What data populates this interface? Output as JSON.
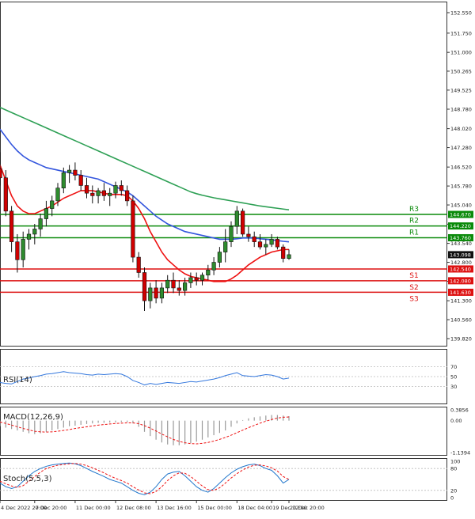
{
  "chart_data": {
    "type": "candlestick",
    "main": {
      "price_ticks": [
        "152.550",
        "151.750",
        "151.000",
        "150.265",
        "149.525",
        "148.780",
        "148.020",
        "147.280",
        "146.520",
        "145.780",
        "145.040",
        "144.290",
        "143.540",
        "142.800",
        "142.060",
        "141.300",
        "140.560",
        "139.820"
      ],
      "yrange": [
        139.82,
        152.55
      ],
      "current_price": "143.098",
      "levels": [
        {
          "name": "R3",
          "value": "144.670",
          "type": "resistance"
        },
        {
          "name": "R2",
          "value": "144.220",
          "type": "resistance"
        },
        {
          "name": "R1",
          "value": "143.760",
          "type": "resistance"
        },
        {
          "name": "S1",
          "value": "142.540",
          "type": "support"
        },
        {
          "name": "S2",
          "value": "142.080",
          "type": "support"
        },
        {
          "name": "S3",
          "value": "141.630",
          "type": "support"
        }
      ],
      "candles": [
        {
          "o": 146.45,
          "h": 147.1,
          "l": 145.8,
          "c": 146.1
        },
        {
          "o": 146.1,
          "h": 146.4,
          "l": 144.6,
          "c": 144.8
        },
        {
          "o": 144.8,
          "h": 145.0,
          "l": 143.2,
          "c": 143.6
        },
        {
          "o": 143.6,
          "h": 143.9,
          "l": 142.4,
          "c": 142.9
        },
        {
          "o": 142.9,
          "h": 144.0,
          "l": 142.6,
          "c": 143.7
        },
        {
          "o": 143.7,
          "h": 144.1,
          "l": 143.3,
          "c": 143.9
        },
        {
          "o": 143.9,
          "h": 144.3,
          "l": 143.5,
          "c": 144.1
        },
        {
          "o": 144.1,
          "h": 144.7,
          "l": 143.8,
          "c": 144.5
        },
        {
          "o": 144.5,
          "h": 145.2,
          "l": 144.2,
          "c": 144.9
        },
        {
          "o": 144.9,
          "h": 145.4,
          "l": 144.6,
          "c": 145.2
        },
        {
          "o": 145.2,
          "h": 145.9,
          "l": 145.0,
          "c": 145.7
        },
        {
          "o": 145.7,
          "h": 146.5,
          "l": 145.5,
          "c": 146.3
        },
        {
          "o": 146.3,
          "h": 146.6,
          "l": 145.9,
          "c": 146.4
        },
        {
          "o": 146.4,
          "h": 146.7,
          "l": 146.0,
          "c": 146.2
        },
        {
          "o": 146.2,
          "h": 146.4,
          "l": 145.6,
          "c": 145.8
        },
        {
          "o": 145.8,
          "h": 146.1,
          "l": 145.3,
          "c": 145.5
        },
        {
          "o": 145.5,
          "h": 145.8,
          "l": 145.1,
          "c": 145.4
        },
        {
          "o": 145.4,
          "h": 145.7,
          "l": 145.1,
          "c": 145.6
        },
        {
          "o": 145.6,
          "h": 145.9,
          "l": 145.2,
          "c": 145.4
        },
        {
          "o": 145.4,
          "h": 145.7,
          "l": 145.0,
          "c": 145.5
        },
        {
          "o": 145.5,
          "h": 145.95,
          "l": 145.3,
          "c": 145.8
        },
        {
          "o": 145.8,
          "h": 146.0,
          "l": 145.4,
          "c": 145.6
        },
        {
          "o": 145.6,
          "h": 145.8,
          "l": 145.0,
          "c": 145.2
        },
        {
          "o": 145.2,
          "h": 145.4,
          "l": 142.8,
          "c": 143.0
        },
        {
          "o": 143.0,
          "h": 143.2,
          "l": 142.2,
          "c": 142.4
        },
        {
          "o": 142.4,
          "h": 142.6,
          "l": 140.9,
          "c": 141.3
        },
        {
          "o": 141.3,
          "h": 142.0,
          "l": 141.0,
          "c": 141.8
        },
        {
          "o": 141.8,
          "h": 142.1,
          "l": 141.2,
          "c": 141.4
        },
        {
          "o": 141.4,
          "h": 142.0,
          "l": 141.2,
          "c": 141.8
        },
        {
          "o": 141.8,
          "h": 142.3,
          "l": 141.6,
          "c": 142.1
        },
        {
          "o": 142.1,
          "h": 142.4,
          "l": 141.6,
          "c": 141.8
        },
        {
          "o": 141.8,
          "h": 142.1,
          "l": 141.5,
          "c": 141.7
        },
        {
          "o": 141.7,
          "h": 142.2,
          "l": 141.5,
          "c": 142.0
        },
        {
          "o": 142.0,
          "h": 142.4,
          "l": 141.8,
          "c": 142.2
        },
        {
          "o": 142.2,
          "h": 142.4,
          "l": 141.9,
          "c": 142.1
        },
        {
          "o": 142.1,
          "h": 142.4,
          "l": 141.9,
          "c": 142.3
        },
        {
          "o": 142.3,
          "h": 142.7,
          "l": 142.1,
          "c": 142.5
        },
        {
          "o": 142.5,
          "h": 143.0,
          "l": 142.3,
          "c": 142.8
        },
        {
          "o": 142.8,
          "h": 143.4,
          "l": 142.6,
          "c": 143.2
        },
        {
          "o": 143.2,
          "h": 144.1,
          "l": 142.8,
          "c": 143.6
        },
        {
          "o": 143.6,
          "h": 144.4,
          "l": 143.4,
          "c": 144.2
        },
        {
          "o": 144.2,
          "h": 145.0,
          "l": 143.9,
          "c": 144.8
        },
        {
          "o": 144.8,
          "h": 144.9,
          "l": 143.8,
          "c": 143.9
        },
        {
          "o": 143.9,
          "h": 144.2,
          "l": 143.6,
          "c": 143.8
        },
        {
          "o": 143.8,
          "h": 144.0,
          "l": 143.4,
          "c": 143.6
        },
        {
          "o": 143.6,
          "h": 143.9,
          "l": 143.3,
          "c": 143.4
        },
        {
          "o": 143.4,
          "h": 143.7,
          "l": 143.1,
          "c": 143.5
        },
        {
          "o": 143.5,
          "h": 143.9,
          "l": 143.4,
          "c": 143.7
        },
        {
          "o": 143.7,
          "h": 143.8,
          "l": 143.3,
          "c": 143.4
        },
        {
          "o": 143.4,
          "h": 143.5,
          "l": 142.8,
          "c": 142.95
        },
        {
          "o": 142.95,
          "h": 143.3,
          "l": 142.9,
          "c": 143.098
        }
      ],
      "ma_red": [
        146.6,
        146.0,
        145.4,
        145.0,
        144.8,
        144.7,
        144.7,
        144.8,
        144.9,
        145.0,
        145.15,
        145.3,
        145.4,
        145.5,
        145.6,
        145.6,
        145.6,
        145.55,
        145.5,
        145.45,
        145.45,
        145.45,
        145.4,
        145.2,
        144.9,
        144.5,
        144.0,
        143.6,
        143.2,
        142.9,
        142.7,
        142.5,
        142.35,
        142.25,
        142.2,
        142.15,
        142.1,
        142.05,
        142.05,
        142.05,
        142.15,
        142.3,
        142.5,
        142.7,
        142.85,
        143.0,
        143.1,
        143.2,
        143.25,
        143.3,
        143.3
      ],
      "ma_blue": [
        148.0,
        147.7,
        147.4,
        147.15,
        146.95,
        146.8,
        146.7,
        146.6,
        146.5,
        146.45,
        146.4,
        146.35,
        146.3,
        146.25,
        146.2,
        146.15,
        146.1,
        146.05,
        145.95,
        145.85,
        145.75,
        145.65,
        145.55,
        145.4,
        145.2,
        145.0,
        144.8,
        144.6,
        144.45,
        144.3,
        144.2,
        144.1,
        144.0,
        143.95,
        143.9,
        143.85,
        143.8,
        143.75,
        143.7,
        143.7,
        143.7,
        143.72,
        143.75,
        143.75,
        143.75,
        143.72,
        143.7,
        143.68,
        143.65,
        143.62,
        143.6
      ],
      "ma_green": [
        148.85,
        148.75,
        148.65,
        148.55,
        148.45,
        148.35,
        148.25,
        148.15,
        148.05,
        147.95,
        147.85,
        147.75,
        147.65,
        147.55,
        147.45,
        147.35,
        147.25,
        147.15,
        147.05,
        146.95,
        146.85,
        146.75,
        146.65,
        146.55,
        146.45,
        146.35,
        146.25,
        146.15,
        146.05,
        145.95,
        145.85,
        145.75,
        145.65,
        145.55,
        145.48,
        145.42,
        145.37,
        145.32,
        145.28,
        145.24,
        145.2,
        145.16,
        145.12,
        145.08,
        145.04,
        145.0,
        144.97,
        144.94,
        144.91,
        144.88,
        144.85
      ],
      "colors": {
        "bull": "#2e8b2e",
        "bear": "#d00000",
        "ma_red": "#ee1111",
        "ma_blue": "#3355dd",
        "ma_green": "#2ea055",
        "resistance": "#0a8a0a",
        "support": "#dd1111"
      }
    },
    "rsi": {
      "label": "RSI(14)",
      "ticks": [
        "70",
        "50",
        "30"
      ],
      "yrange": [
        0,
        100
      ],
      "values": [
        38,
        36,
        35,
        40,
        45,
        47,
        50,
        52,
        55,
        56,
        58,
        60,
        58,
        57,
        56,
        54,
        53,
        55,
        54,
        55,
        56,
        55,
        50,
        42,
        38,
        33,
        36,
        34,
        36,
        38,
        37,
        36,
        38,
        40,
        39,
        41,
        43,
        45,
        48,
        52,
        55,
        58,
        52,
        51,
        50,
        52,
        54,
        53,
        50,
        45,
        47
      ],
      "color": "#3377dd"
    },
    "macd": {
      "label": "MACD(12,26,9)",
      "ticks": [
        "0.3856",
        "0.00",
        "-1.1394"
      ],
      "yrange": [
        -1.1394,
        0.3856
      ],
      "histogram": [
        -0.2,
        -0.25,
        -0.3,
        -0.35,
        -0.4,
        -0.45,
        -0.48,
        -0.45,
        -0.4,
        -0.35,
        -0.3,
        -0.25,
        -0.2,
        -0.18,
        -0.15,
        -0.12,
        -0.1,
        -0.08,
        -0.08,
        -0.07,
        -0.06,
        -0.05,
        -0.05,
        -0.1,
        -0.22,
        -0.4,
        -0.55,
        -0.68,
        -0.78,
        -0.85,
        -0.88,
        -0.88,
        -0.85,
        -0.8,
        -0.75,
        -0.68,
        -0.6,
        -0.52,
        -0.44,
        -0.35,
        -0.22,
        -0.1,
        0.02,
        0.08,
        0.12,
        0.15,
        0.18,
        0.2,
        0.2,
        0.18,
        0.16
      ],
      "signal": [
        -0.05,
        -0.1,
        -0.16,
        -0.22,
        -0.28,
        -0.33,
        -0.38,
        -0.4,
        -0.41,
        -0.4,
        -0.38,
        -0.35,
        -0.32,
        -0.28,
        -0.25,
        -0.22,
        -0.19,
        -0.16,
        -0.14,
        -0.12,
        -0.1,
        -0.09,
        -0.08,
        -0.08,
        -0.11,
        -0.18,
        -0.27,
        -0.37,
        -0.48,
        -0.58,
        -0.67,
        -0.74,
        -0.79,
        -0.82,
        -0.83,
        -0.81,
        -0.78,
        -0.73,
        -0.67,
        -0.6,
        -0.52,
        -0.43,
        -0.34,
        -0.25,
        -0.17,
        -0.09,
        -0.02,
        0.04,
        0.09,
        0.12,
        0.13
      ],
      "colors": {
        "histogram": "#999999",
        "signal": "#ee1111"
      }
    },
    "stoch": {
      "label": "Stoch(5,5,3)",
      "ticks": [
        "100",
        "80",
        "20",
        "0"
      ],
      "yrange": [
        0,
        100
      ],
      "k": [
        40,
        30,
        25,
        30,
        45,
        60,
        72,
        80,
        86,
        90,
        92,
        94,
        95,
        93,
        88,
        80,
        72,
        65,
        58,
        50,
        45,
        40,
        30,
        20,
        12,
        8,
        15,
        30,
        50,
        65,
        70,
        72,
        60,
        45,
        30,
        20,
        15,
        25,
        40,
        55,
        68,
        78,
        85,
        90,
        92,
        88,
        80,
        75,
        60,
        40,
        50
      ],
      "d": [
        45,
        38,
        32,
        28,
        33,
        45,
        58,
        70,
        80,
        85,
        89,
        91,
        93,
        94,
        92,
        88,
        82,
        75,
        68,
        60,
        53,
        47,
        40,
        30,
        21,
        13,
        11,
        17,
        30,
        47,
        60,
        68,
        67,
        58,
        45,
        32,
        22,
        20,
        27,
        40,
        54,
        66,
        76,
        84,
        89,
        90,
        87,
        82,
        73,
        58,
        50
      ],
      "colors": {
        "k": "#2277cc",
        "d": "#ee1111"
      }
    },
    "time_labels": [
      "4 Dec 2022 20:00",
      "7 Dec 20:00",
      "11 Dec 00:00",
      "12 Dec 08:00",
      "13 Dec 16:00",
      "15 Dec 00:00",
      "18 Dec 04:00",
      "19 Dec 12:00",
      "20 Dec 20:00"
    ],
    "time_tick_index": [
      0,
      6,
      13,
      20,
      27,
      34,
      41,
      47,
      50
    ]
  }
}
